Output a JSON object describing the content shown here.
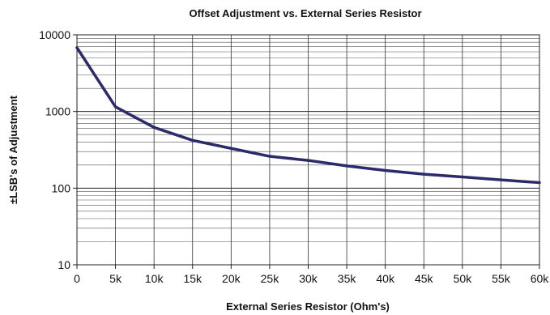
{
  "chart_data": {
    "type": "line",
    "title": "Offset Adjustment vs. External Series Resistor",
    "xlabel": "External Series Resistor (Ohm's)",
    "ylabel": "±LSB's of Adjustment",
    "yscale": "log",
    "xlim": [
      0,
      60000
    ],
    "ylim": [
      10,
      10000
    ],
    "x_ticks": [
      0,
      5000,
      10000,
      15000,
      20000,
      25000,
      30000,
      35000,
      40000,
      45000,
      50000,
      55000,
      60000
    ],
    "x_tick_labels": [
      "0",
      "5k",
      "10k",
      "15k",
      "20k",
      "25k",
      "30k",
      "35k",
      "40k",
      "45k",
      "50k",
      "55k",
      "60k"
    ],
    "y_ticks": [
      10,
      100,
      1000,
      10000
    ],
    "y_tick_labels": [
      "10",
      "100",
      "1000",
      "10000"
    ],
    "grid": true,
    "line_color": "#2b2a6b",
    "series": [
      {
        "x": [
          0,
          5000,
          10000,
          15000,
          20000,
          25000,
          30000,
          35000,
          40000,
          45000,
          50000,
          55000,
          60000
        ],
        "values": [
          6800,
          1150,
          620,
          420,
          330,
          260,
          230,
          195,
          170,
          152,
          140,
          128,
          118
        ]
      }
    ]
  }
}
